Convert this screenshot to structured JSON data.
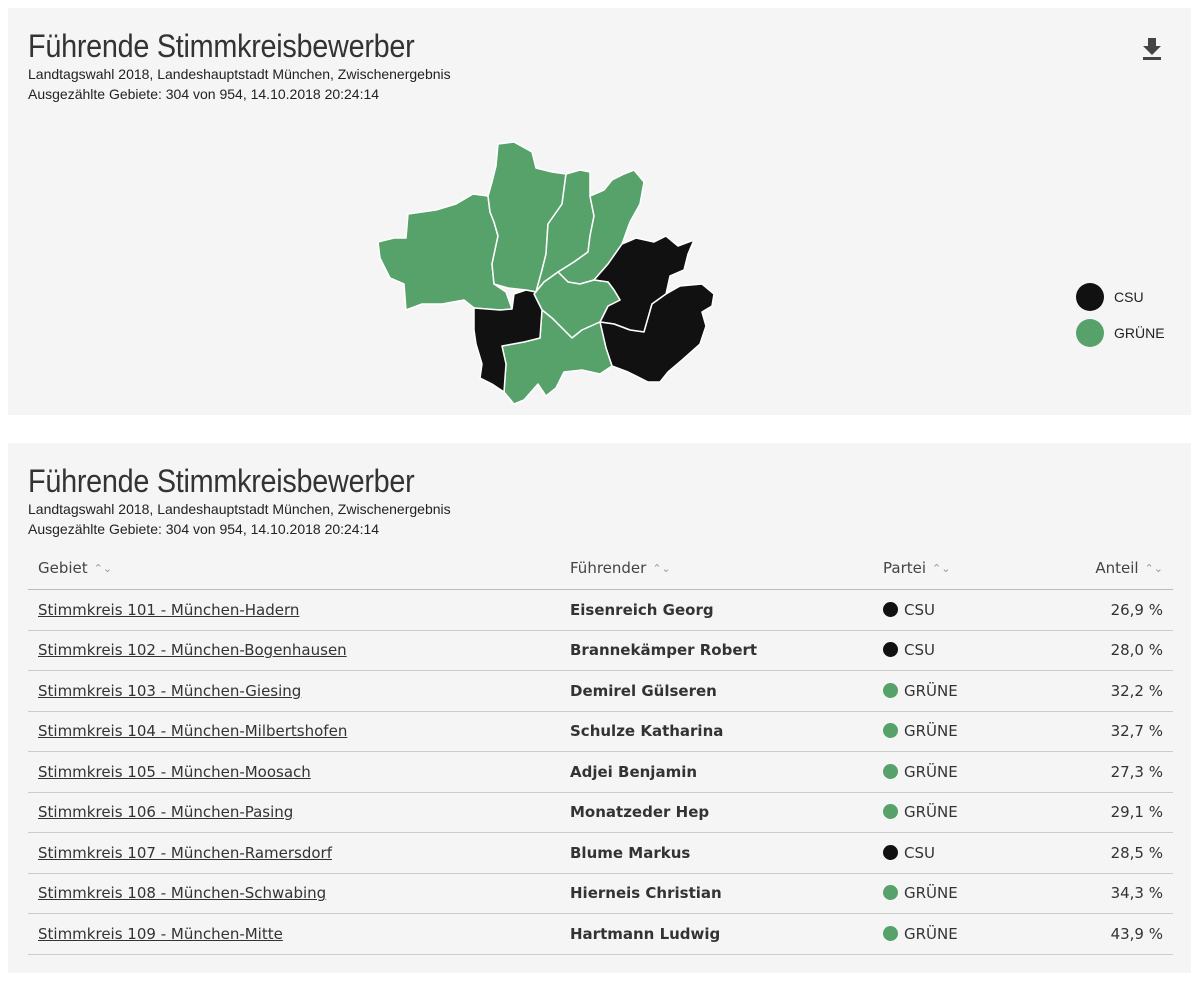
{
  "colors": {
    "csu": "#111111",
    "gruene": "#57a16a",
    "border": "#ffffff"
  },
  "map_panel": {
    "title": "Führende Stimmkreisbewerber",
    "subtitle": "Landtagswahl 2018, Landeshauptstadt München, Zwischenergebnis",
    "status": "Ausgezählte Gebiete: 304 von 954, 14.10.2018 20:24:14",
    "download_icon": "download-icon",
    "legend": [
      {
        "label": "CSU",
        "color": "#111111"
      },
      {
        "label": "GRÜNE",
        "color": "#57a16a"
      }
    ]
  },
  "table_panel": {
    "title": "Führende Stimmkreisbewerber",
    "subtitle": "Landtagswahl 2018, Landeshauptstadt München, Zwischenergebnis",
    "status": "Ausgezählte Gebiete: 304 von 954, 14.10.2018 20:24:14",
    "headers": [
      "Gebiet",
      "Führender",
      "Partei",
      "Anteil"
    ],
    "rows": [
      {
        "gebiet": "Stimmkreis 101 - München-Hadern",
        "fuehrender": "Eisenreich Georg",
        "partei": "CSU",
        "anteil": "26,9 %"
      },
      {
        "gebiet": "Stimmkreis 102 - München-Bogenhausen",
        "fuehrender": "Brannekämper Robert",
        "partei": "CSU",
        "anteil": "28,0 %"
      },
      {
        "gebiet": "Stimmkreis 103 - München-Giesing",
        "fuehrender": "Demirel Gülseren",
        "partei": "GRÜNE",
        "anteil": "32,2 %"
      },
      {
        "gebiet": "Stimmkreis 104 - München-Milbertshofen",
        "fuehrender": "Schulze Katharina",
        "partei": "GRÜNE",
        "anteil": "32,7 %"
      },
      {
        "gebiet": "Stimmkreis 105 - München-Moosach",
        "fuehrender": "Adjei Benjamin",
        "partei": "GRÜNE",
        "anteil": "27,3 %"
      },
      {
        "gebiet": "Stimmkreis 106 - München-Pasing",
        "fuehrender": "Monatzeder Hep",
        "partei": "GRÜNE",
        "anteil": "29,1 %"
      },
      {
        "gebiet": "Stimmkreis 107 - München-Ramersdorf",
        "fuehrender": "Blume Markus",
        "partei": "CSU",
        "anteil": "28,5 %"
      },
      {
        "gebiet": "Stimmkreis 108 - München-Schwabing",
        "fuehrender": "Hierneis Christian",
        "partei": "GRÜNE",
        "anteil": "34,3 %"
      },
      {
        "gebiet": "Stimmkreis 109 - München-Mitte",
        "fuehrender": "Hartmann Ludwig",
        "partei": "GRÜNE",
        "anteil": "43,9 %"
      }
    ]
  }
}
